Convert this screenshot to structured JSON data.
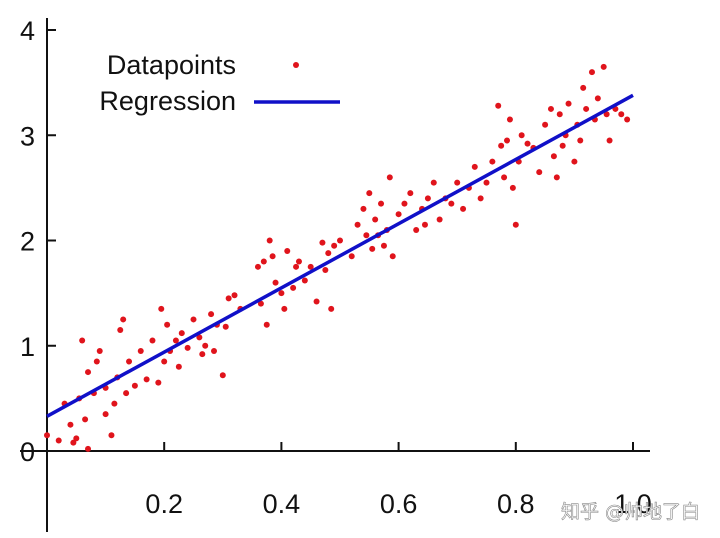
{
  "chart_data": {
    "type": "scatter",
    "xlim": [
      0,
      1.0
    ],
    "ylim": [
      0,
      4
    ],
    "x_ticks": [
      0.2,
      0.4,
      0.6,
      0.8,
      1.0
    ],
    "x_tick_labels": [
      "0.2",
      "0.4",
      "0.6",
      "0.8",
      "1.0"
    ],
    "y_ticks": [
      0,
      1,
      2,
      3,
      4
    ],
    "y_tick_labels": [
      "0",
      "1",
      "2",
      "3",
      "4"
    ],
    "grid": false,
    "legend": {
      "placement": "top-left",
      "entries": [
        {
          "label": "Datapoints",
          "kind": "marker",
          "color": "#e0141c"
        },
        {
          "label": "Regression",
          "kind": "line",
          "color": "#1010c8"
        }
      ]
    },
    "series": [
      {
        "name": "Datapoints",
        "kind": "scatter",
        "color": "#e0141c",
        "points": [
          [
            0.0,
            0.15
          ],
          [
            0.02,
            0.1
          ],
          [
            0.03,
            0.45
          ],
          [
            0.04,
            0.25
          ],
          [
            0.045,
            0.08
          ],
          [
            0.05,
            0.12
          ],
          [
            0.055,
            0.5
          ],
          [
            0.06,
            1.05
          ],
          [
            0.065,
            0.3
          ],
          [
            0.07,
            0.02
          ],
          [
            0.07,
            0.75
          ],
          [
            0.08,
            0.55
          ],
          [
            0.085,
            0.85
          ],
          [
            0.09,
            0.95
          ],
          [
            0.1,
            0.6
          ],
          [
            0.1,
            0.35
          ],
          [
            0.11,
            0.15
          ],
          [
            0.115,
            0.45
          ],
          [
            0.12,
            0.7
          ],
          [
            0.125,
            1.15
          ],
          [
            0.13,
            1.25
          ],
          [
            0.135,
            0.55
          ],
          [
            0.14,
            0.85
          ],
          [
            0.15,
            0.62
          ],
          [
            0.16,
            0.95
          ],
          [
            0.17,
            0.68
          ],
          [
            0.18,
            1.05
          ],
          [
            0.19,
            0.65
          ],
          [
            0.195,
            1.35
          ],
          [
            0.2,
            0.85
          ],
          [
            0.205,
            1.2
          ],
          [
            0.21,
            0.95
          ],
          [
            0.22,
            1.05
          ],
          [
            0.225,
            0.8
          ],
          [
            0.23,
            1.12
          ],
          [
            0.24,
            0.98
          ],
          [
            0.25,
            1.25
          ],
          [
            0.26,
            1.08
          ],
          [
            0.265,
            0.92
          ],
          [
            0.27,
            1.0
          ],
          [
            0.28,
            1.3
          ],
          [
            0.285,
            0.95
          ],
          [
            0.29,
            1.2
          ],
          [
            0.3,
            0.72
          ],
          [
            0.305,
            1.18
          ],
          [
            0.31,
            1.45
          ],
          [
            0.32,
            1.48
          ],
          [
            0.33,
            1.35
          ],
          [
            0.36,
            1.75
          ],
          [
            0.365,
            1.4
          ],
          [
            0.37,
            1.8
          ],
          [
            0.375,
            1.2
          ],
          [
            0.38,
            2.0
          ],
          [
            0.385,
            1.85
          ],
          [
            0.39,
            1.6
          ],
          [
            0.4,
            1.5
          ],
          [
            0.405,
            1.35
          ],
          [
            0.41,
            1.9
          ],
          [
            0.42,
            1.55
          ],
          [
            0.425,
            1.75
          ],
          [
            0.43,
            1.8
          ],
          [
            0.44,
            1.62
          ],
          [
            0.45,
            1.75
          ],
          [
            0.46,
            1.42
          ],
          [
            0.47,
            1.98
          ],
          [
            0.475,
            1.72
          ],
          [
            0.48,
            1.88
          ],
          [
            0.485,
            1.35
          ],
          [
            0.49,
            1.95
          ],
          [
            0.5,
            2.0
          ],
          [
            0.52,
            1.85
          ],
          [
            0.53,
            2.15
          ],
          [
            0.54,
            2.3
          ],
          [
            0.545,
            2.05
          ],
          [
            0.55,
            2.45
          ],
          [
            0.555,
            1.92
          ],
          [
            0.56,
            2.2
          ],
          [
            0.565,
            2.05
          ],
          [
            0.57,
            2.35
          ],
          [
            0.575,
            1.95
          ],
          [
            0.58,
            2.1
          ],
          [
            0.585,
            2.6
          ],
          [
            0.59,
            1.85
          ],
          [
            0.6,
            2.25
          ],
          [
            0.61,
            2.35
          ],
          [
            0.62,
            2.45
          ],
          [
            0.63,
            2.1
          ],
          [
            0.64,
            2.3
          ],
          [
            0.645,
            2.15
          ],
          [
            0.65,
            2.4
          ],
          [
            0.66,
            2.55
          ],
          [
            0.67,
            2.2
          ],
          [
            0.68,
            2.4
          ],
          [
            0.69,
            2.35
          ],
          [
            0.7,
            2.55
          ],
          [
            0.71,
            2.3
          ],
          [
            0.72,
            2.5
          ],
          [
            0.73,
            2.7
          ],
          [
            0.74,
            2.4
          ],
          [
            0.75,
            2.55
          ],
          [
            0.76,
            2.75
          ],
          [
            0.77,
            3.28
          ],
          [
            0.775,
            2.9
          ],
          [
            0.78,
            2.6
          ],
          [
            0.785,
            2.95
          ],
          [
            0.79,
            3.15
          ],
          [
            0.795,
            2.5
          ],
          [
            0.8,
            2.15
          ],
          [
            0.805,
            2.75
          ],
          [
            0.81,
            3.0
          ],
          [
            0.82,
            2.92
          ],
          [
            0.83,
            2.88
          ],
          [
            0.84,
            2.65
          ],
          [
            0.85,
            3.1
          ],
          [
            0.86,
            3.25
          ],
          [
            0.865,
            2.8
          ],
          [
            0.87,
            2.6
          ],
          [
            0.875,
            3.2
          ],
          [
            0.88,
            2.9
          ],
          [
            0.885,
            3.0
          ],
          [
            0.89,
            3.3
          ],
          [
            0.9,
            2.75
          ],
          [
            0.905,
            3.1
          ],
          [
            0.91,
            2.95
          ],
          [
            0.915,
            3.45
          ],
          [
            0.92,
            3.25
          ],
          [
            0.93,
            3.6
          ],
          [
            0.935,
            3.15
          ],
          [
            0.94,
            3.35
          ],
          [
            0.95,
            3.65
          ],
          [
            0.955,
            3.2
          ],
          [
            0.96,
            2.95
          ],
          [
            0.97,
            3.25
          ],
          [
            0.98,
            3.2
          ],
          [
            0.99,
            3.15
          ]
        ]
      },
      {
        "name": "Regression",
        "kind": "line",
        "color": "#1010c8",
        "points": [
          [
            0.0,
            0.33
          ],
          [
            1.0,
            3.38
          ]
        ]
      }
    ]
  },
  "watermark": {
    "text": "知乎 @帅地了白",
    "color": "#ffffff"
  }
}
